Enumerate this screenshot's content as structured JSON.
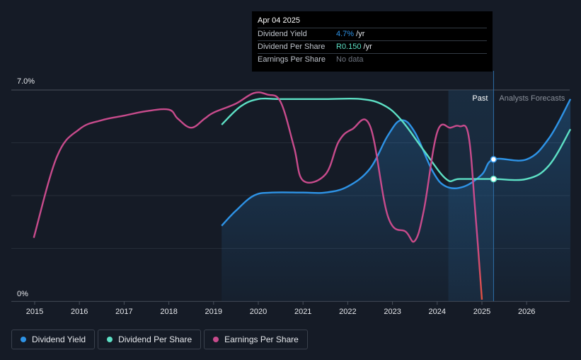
{
  "chart_data": {
    "type": "line",
    "y_top_label": "7.0%",
    "y_bottom_label": "0%",
    "ylim": [
      0,
      7.0
    ],
    "xlim": [
      2014.5,
      2026.98
    ],
    "x_ticks": [
      "2015",
      "2016",
      "2017",
      "2018",
      "2019",
      "2020",
      "2021",
      "2022",
      "2023",
      "2024",
      "2025",
      "2026"
    ],
    "past_label": "Past",
    "forecast_label": "Analysts Forecasts",
    "past_region": [
      2024.25,
      2025.26
    ],
    "series": [
      {
        "name": "Dividend Yield",
        "color": "#2e93e6",
        "points": [
          [
            2019.18,
            2.5
          ],
          [
            2019.5,
            3.0
          ],
          [
            2019.9,
            3.5
          ],
          [
            2020.3,
            3.6
          ],
          [
            2021.0,
            3.6
          ],
          [
            2021.5,
            3.6
          ],
          [
            2022.0,
            3.8
          ],
          [
            2022.5,
            4.4
          ],
          [
            2022.9,
            5.5
          ],
          [
            2023.2,
            6.0
          ],
          [
            2023.5,
            5.6
          ],
          [
            2023.9,
            4.3
          ],
          [
            2024.2,
            3.8
          ],
          [
            2024.6,
            3.8
          ],
          [
            2025.0,
            4.2
          ],
          [
            2025.26,
            4.7
          ],
          [
            2026.0,
            4.7
          ],
          [
            2026.5,
            5.4
          ],
          [
            2026.98,
            6.7
          ]
        ]
      },
      {
        "name": "Dividend Per Share",
        "color": "#5de0c5",
        "points": [
          [
            2019.18,
            5.85
          ],
          [
            2019.6,
            6.45
          ],
          [
            2020.0,
            6.7
          ],
          [
            2020.5,
            6.7
          ],
          [
            2021.5,
            6.7
          ],
          [
            2022.3,
            6.7
          ],
          [
            2022.8,
            6.5
          ],
          [
            2023.2,
            6.0
          ],
          [
            2023.7,
            5.0
          ],
          [
            2024.2,
            4.05
          ],
          [
            2024.5,
            4.05
          ],
          [
            2025.26,
            4.05
          ],
          [
            2026.0,
            4.05
          ],
          [
            2026.5,
            4.5
          ],
          [
            2026.98,
            5.7
          ]
        ]
      },
      {
        "name": "Earnings Per Share",
        "color": "#c84b8c",
        "points": [
          [
            2014.98,
            2.1
          ],
          [
            2015.5,
            4.8
          ],
          [
            2016.0,
            5.7
          ],
          [
            2016.5,
            6.0
          ],
          [
            2017.0,
            6.15
          ],
          [
            2017.5,
            6.3
          ],
          [
            2018.0,
            6.35
          ],
          [
            2018.2,
            6.05
          ],
          [
            2018.5,
            5.75
          ],
          [
            2018.8,
            6.05
          ],
          [
            2019.0,
            6.25
          ],
          [
            2019.5,
            6.55
          ],
          [
            2019.9,
            6.9
          ],
          [
            2020.2,
            6.85
          ],
          [
            2020.5,
            6.6
          ],
          [
            2020.8,
            5.1
          ],
          [
            2021.0,
            4.0
          ],
          [
            2021.5,
            4.2
          ],
          [
            2021.8,
            5.3
          ],
          [
            2022.1,
            5.7
          ],
          [
            2022.5,
            5.8
          ],
          [
            2022.9,
            2.8
          ],
          [
            2023.3,
            2.3
          ],
          [
            2023.5,
            2.0
          ],
          [
            2023.7,
            3.0
          ],
          [
            2024.0,
            5.6
          ],
          [
            2024.3,
            5.75
          ],
          [
            2024.5,
            5.8
          ],
          [
            2024.7,
            5.5
          ],
          [
            2024.85,
            3.0
          ],
          [
            2025.0,
            0.05
          ]
        ],
        "negative_segment_color": "#e0503c"
      }
    ],
    "markers": [
      {
        "series": "Dividend Yield",
        "x": 2025.26,
        "y": 4.7
      },
      {
        "series": "Dividend Per Share",
        "x": 2025.26,
        "y": 4.05
      }
    ],
    "tooltip": {
      "date": "Apr 04 2025",
      "rows": [
        {
          "label": "Dividend Yield",
          "value": "4.7%",
          "unit": " /yr",
          "color": "#2e93e6"
        },
        {
          "label": "Dividend Per Share",
          "value": "R0.150",
          "unit": " /yr",
          "color": "#5de0c5"
        },
        {
          "label": "Earnings Per Share",
          "value": "No data",
          "unit": "",
          "color": "#6f7580"
        }
      ]
    },
    "legend": [
      {
        "label": "Dividend Yield",
        "color": "#2e93e6"
      },
      {
        "label": "Dividend Per Share",
        "color": "#5de0c5"
      },
      {
        "label": "Earnings Per Share",
        "color": "#c84b8c"
      }
    ]
  }
}
